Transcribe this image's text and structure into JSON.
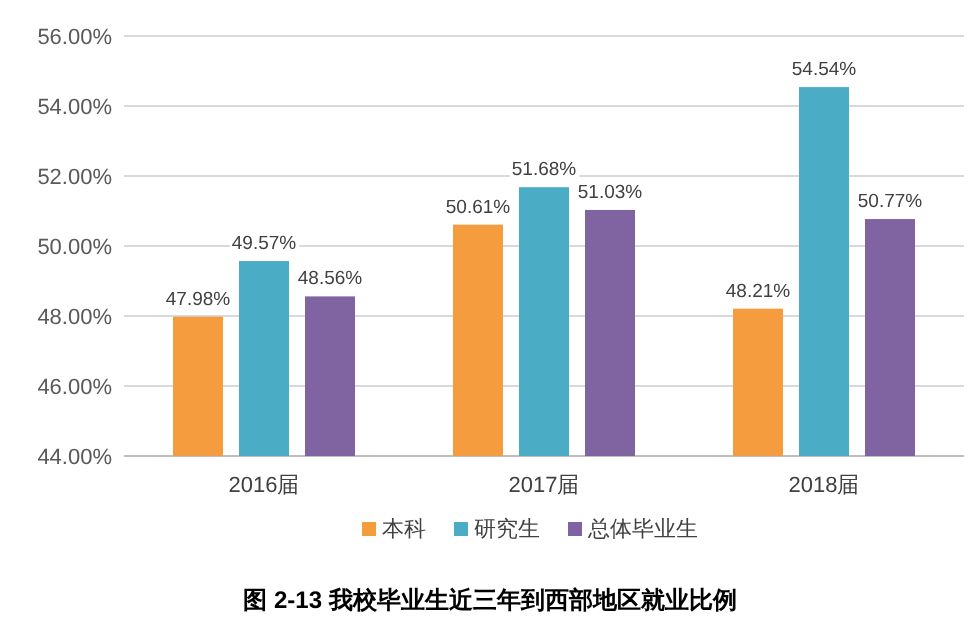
{
  "chart_data": {
    "type": "bar",
    "title": "图 2-13 我校毕业生近三年到西部地区就业比例",
    "categories": [
      "2016届",
      "2017届",
      "2018届"
    ],
    "series": [
      {
        "name": "本科",
        "color": "#f59d3e",
        "values": [
          47.98,
          50.61,
          48.21
        ],
        "value_labels": [
          "47.98%",
          "50.61%",
          "48.21%"
        ]
      },
      {
        "name": "研究生",
        "color": "#4bacc6",
        "values": [
          49.57,
          51.68,
          54.54
        ],
        "value_labels": [
          "49.57%",
          "51.68%",
          "54.54%"
        ]
      },
      {
        "name": "总体毕业生",
        "color": "#8064a2",
        "values": [
          48.56,
          51.03,
          50.77
        ],
        "value_labels": [
          "48.56%",
          "51.03%",
          "50.77%"
        ]
      }
    ],
    "ylim": [
      44,
      56
    ],
    "yticks": [
      {
        "value": 44,
        "label": "44.00%"
      },
      {
        "value": 46,
        "label": "46.00%"
      },
      {
        "value": 48,
        "label": "48.00%"
      },
      {
        "value": 50,
        "label": "50.00%"
      },
      {
        "value": 52,
        "label": "52.00%"
      },
      {
        "value": 54,
        "label": "54.00%"
      },
      {
        "value": 56,
        "label": "56.00%"
      }
    ],
    "grid": "y",
    "legend": "bottom"
  }
}
